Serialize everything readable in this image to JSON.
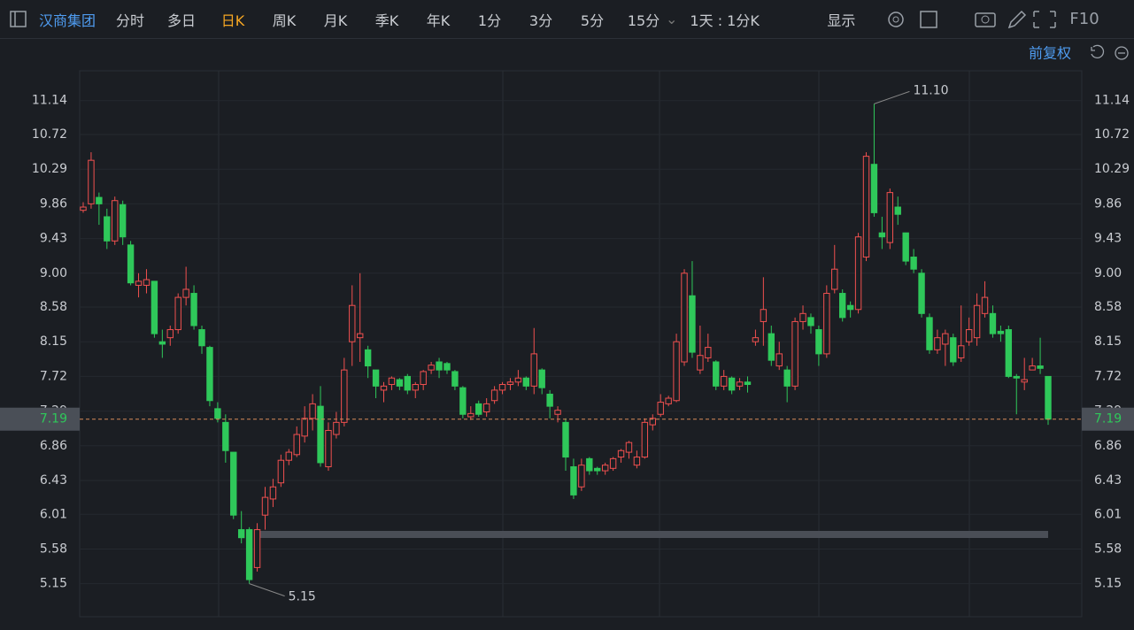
{
  "toolbar": {
    "stock": "汉商集团",
    "periods": [
      "分时",
      "多日",
      "日K",
      "周K",
      "月K",
      "季K",
      "年K",
      "1分",
      "3分",
      "5分",
      "15分"
    ],
    "active_period_index": 2,
    "interval": "1天 : 1分K",
    "display": "显示",
    "f10": "F10"
  },
  "adjust": "前复权",
  "chart_data": {
    "type": "candlestick",
    "up_color": "#f0504f",
    "down_color": "#2fc85a",
    "ylim": [
      4.74,
      11.51
    ],
    "yticks": [
      5.15,
      5.58,
      6.01,
      6.43,
      6.86,
      7.29,
      7.72,
      8.15,
      8.58,
      {
        "value": 9,
        "label": "9.00"
      },
      9.43,
      9.86,
      10.29,
      10.72,
      11.14
    ],
    "grid": true,
    "last_price": {
      "value": 7.19,
      "label": "7.19"
    },
    "high_label": "11.10",
    "low_label": "5.15",
    "open": [
      9.78,
      9.86,
      9.94,
      9.7,
      9.4,
      9.85,
      9.35,
      8.85,
      8.85,
      8.9,
      8.15,
      8.2,
      8.3,
      8.7,
      8.75,
      8.3,
      8.08,
      7.32,
      7.15,
      6.78,
      5.82,
      5.82,
      5.35,
      6.0,
      6.2,
      6.4,
      6.68,
      6.75,
      6.98,
      7.2,
      7.35,
      6.6,
      7.0,
      7.15,
      8.15,
      8.2,
      8.05,
      7.8,
      7.55,
      7.62,
      7.68,
      7.72,
      7.55,
      7.62,
      7.8,
      7.9,
      7.88,
      7.78,
      7.58,
      7.22,
      7.38,
      7.28,
      7.42,
      7.55,
      7.62,
      7.65,
      7.7,
      7.6,
      7.8,
      7.5,
      7.25,
      7.15,
      6.6,
      6.35,
      6.7,
      6.58,
      6.55,
      6.58,
      6.72,
      6.78,
      6.62,
      6.72,
      7.12,
      7.25,
      7.38,
      7.42,
      7.9,
      8.72,
      7.8,
      7.95,
      7.9,
      7.6,
      7.7,
      7.6,
      7.65,
      8.15,
      8.4,
      8.25,
      7.85,
      7.8,
      7.6,
      8.4,
      8.45,
      8.3,
      8.0,
      8.8,
      8.75,
      8.6,
      8.55,
      9.2,
      10.35,
      9.5,
      9.38,
      9.82,
      9.5,
      9.2,
      9.0,
      8.45,
      8.05,
      8.12,
      8.2,
      7.95,
      8.15,
      8.2,
      8.5,
      8.5,
      8.28,
      8.3,
      7.72,
      7.65,
      7.8,
      7.85,
      7.72
    ],
    "high": [
      9.88,
      10.5,
      10.0,
      9.8,
      9.95,
      9.9,
      9.4,
      9.0,
      9.05,
      8.9,
      8.3,
      8.35,
      8.75,
      9.08,
      8.85,
      8.35,
      8.1,
      7.4,
      7.25,
      6.78,
      6.05,
      5.85,
      5.9,
      6.35,
      6.45,
      6.75,
      6.82,
      7.1,
      7.35,
      7.5,
      7.6,
      7.15,
      7.28,
      7.95,
      8.85,
      9.0,
      8.1,
      7.8,
      7.65,
      7.72,
      7.7,
      7.75,
      7.65,
      7.8,
      7.9,
      7.95,
      7.9,
      7.8,
      7.6,
      7.35,
      7.42,
      7.45,
      7.6,
      7.65,
      7.7,
      7.8,
      7.72,
      8.32,
      7.82,
      7.55,
      7.35,
      7.2,
      6.7,
      6.7,
      6.72,
      6.6,
      6.65,
      6.72,
      6.82,
      6.92,
      6.8,
      7.2,
      7.25,
      7.5,
      7.48,
      8.25,
      9.05,
      9.15,
      8.35,
      8.25,
      7.92,
      7.8,
      7.72,
      7.7,
      7.72,
      8.3,
      8.95,
      8.35,
      8.15,
      7.85,
      8.45,
      8.6,
      8.5,
      8.35,
      8.85,
      9.35,
      8.8,
      8.65,
      9.5,
      10.5,
      11.1,
      9.7,
      10.05,
      9.95,
      9.5,
      9.3,
      9.05,
      8.5,
      8.3,
      8.3,
      8.25,
      8.6,
      8.45,
      8.75,
      8.9,
      8.6,
      8.35,
      8.35,
      7.75,
      7.95,
      7.95,
      8.2,
      7.72
    ],
    "low": [
      9.75,
      9.8,
      9.6,
      9.3,
      9.35,
      9.35,
      8.85,
      8.7,
      8.75,
      8.2,
      7.95,
      8.1,
      8.25,
      8.6,
      8.3,
      8.0,
      7.35,
      7.15,
      6.65,
      5.95,
      5.65,
      5.15,
      5.3,
      5.82,
      6.1,
      6.35,
      6.62,
      6.72,
      6.9,
      7.05,
      6.6,
      6.55,
      6.95,
      7.1,
      7.85,
      7.9,
      7.7,
      7.45,
      7.4,
      7.55,
      7.55,
      7.5,
      7.45,
      7.55,
      7.75,
      7.7,
      7.75,
      7.55,
      7.2,
      7.18,
      7.22,
      7.22,
      7.38,
      7.5,
      7.55,
      7.6,
      7.55,
      7.5,
      7.5,
      7.2,
      7.15,
      6.55,
      6.2,
      6.3,
      6.5,
      6.5,
      6.5,
      6.55,
      6.65,
      6.7,
      6.58,
      6.7,
      7.05,
      7.22,
      7.35,
      7.4,
      7.85,
      7.95,
      7.75,
      7.9,
      7.55,
      7.55,
      7.5,
      7.55,
      7.52,
      8.1,
      8.1,
      7.85,
      7.8,
      7.4,
      7.55,
      8.3,
      8.25,
      7.85,
      7.95,
      8.75,
      8.4,
      8.45,
      8.5,
      9.15,
      9.7,
      9.3,
      9.3,
      9.6,
      9.1,
      9.0,
      8.45,
      8.0,
      8.0,
      7.85,
      7.85,
      7.9,
      8.1,
      8.1,
      8.45,
      8.2,
      8.15,
      7.7,
      7.25,
      7.55,
      7.8,
      7.75,
      7.12
    ],
    "close": [
      9.82,
      10.4,
      9.86,
      9.4,
      9.9,
      9.45,
      8.88,
      8.9,
      8.92,
      8.25,
      8.12,
      8.3,
      8.7,
      8.8,
      8.35,
      8.1,
      7.42,
      7.2,
      6.8,
      6.0,
      5.72,
      5.2,
      5.82,
      6.22,
      6.35,
      6.68,
      6.78,
      7.0,
      7.2,
      7.38,
      6.65,
      7.05,
      7.15,
      7.8,
      8.6,
      8.25,
      7.85,
      7.6,
      7.6,
      7.7,
      7.6,
      7.55,
      7.62,
      7.78,
      7.86,
      7.8,
      7.8,
      7.6,
      7.25,
      7.26,
      7.25,
      7.38,
      7.55,
      7.62,
      7.65,
      7.7,
      7.6,
      8.0,
      7.58,
      7.35,
      7.3,
      6.72,
      6.25,
      6.62,
      6.55,
      6.55,
      6.62,
      6.7,
      6.8,
      6.9,
      6.72,
      7.15,
      7.2,
      7.4,
      7.45,
      8.15,
      9.0,
      8.02,
      7.98,
      8.08,
      7.6,
      7.72,
      7.55,
      7.65,
      7.62,
      8.2,
      8.55,
      7.92,
      8.0,
      7.6,
      8.4,
      8.5,
      8.35,
      8.0,
      8.75,
      9.05,
      8.45,
      8.55,
      9.45,
      10.45,
      9.75,
      9.45,
      10.0,
      9.73,
      9.15,
      9.05,
      8.5,
      8.05,
      8.2,
      8.25,
      7.9,
      8.1,
      8.3,
      8.6,
      8.7,
      8.25,
      8.25,
      7.72,
      7.7,
      7.68,
      7.85,
      7.82,
      7.19
    ]
  }
}
